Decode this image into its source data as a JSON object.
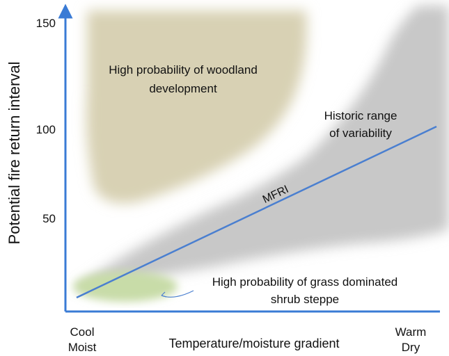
{
  "colors": {
    "axis": "#3a7bd5",
    "woodland": "#d8d1b4",
    "historic_range": "#c8c8c8",
    "grass": "#c8dca8",
    "mfri_line": "#4a7fd0"
  },
  "axes": {
    "y_label": "Potential fire return interval",
    "x_label": "Temperature/moisture gradient",
    "y_ticks": [
      "150",
      "100",
      "50"
    ],
    "x_left_line1": "Cool",
    "x_left_line2": "Moist",
    "x_right_line1": "Warm",
    "x_right_line2": "Dry"
  },
  "regions": {
    "woodland_line1": "High probability of woodland",
    "woodland_line2": "development",
    "historic_line1": "Historic range",
    "historic_line2": "of variability",
    "grass_line1": "High probability of grass dominated",
    "grass_line2": "shrub steppe"
  },
  "line_label": "MFRI"
}
